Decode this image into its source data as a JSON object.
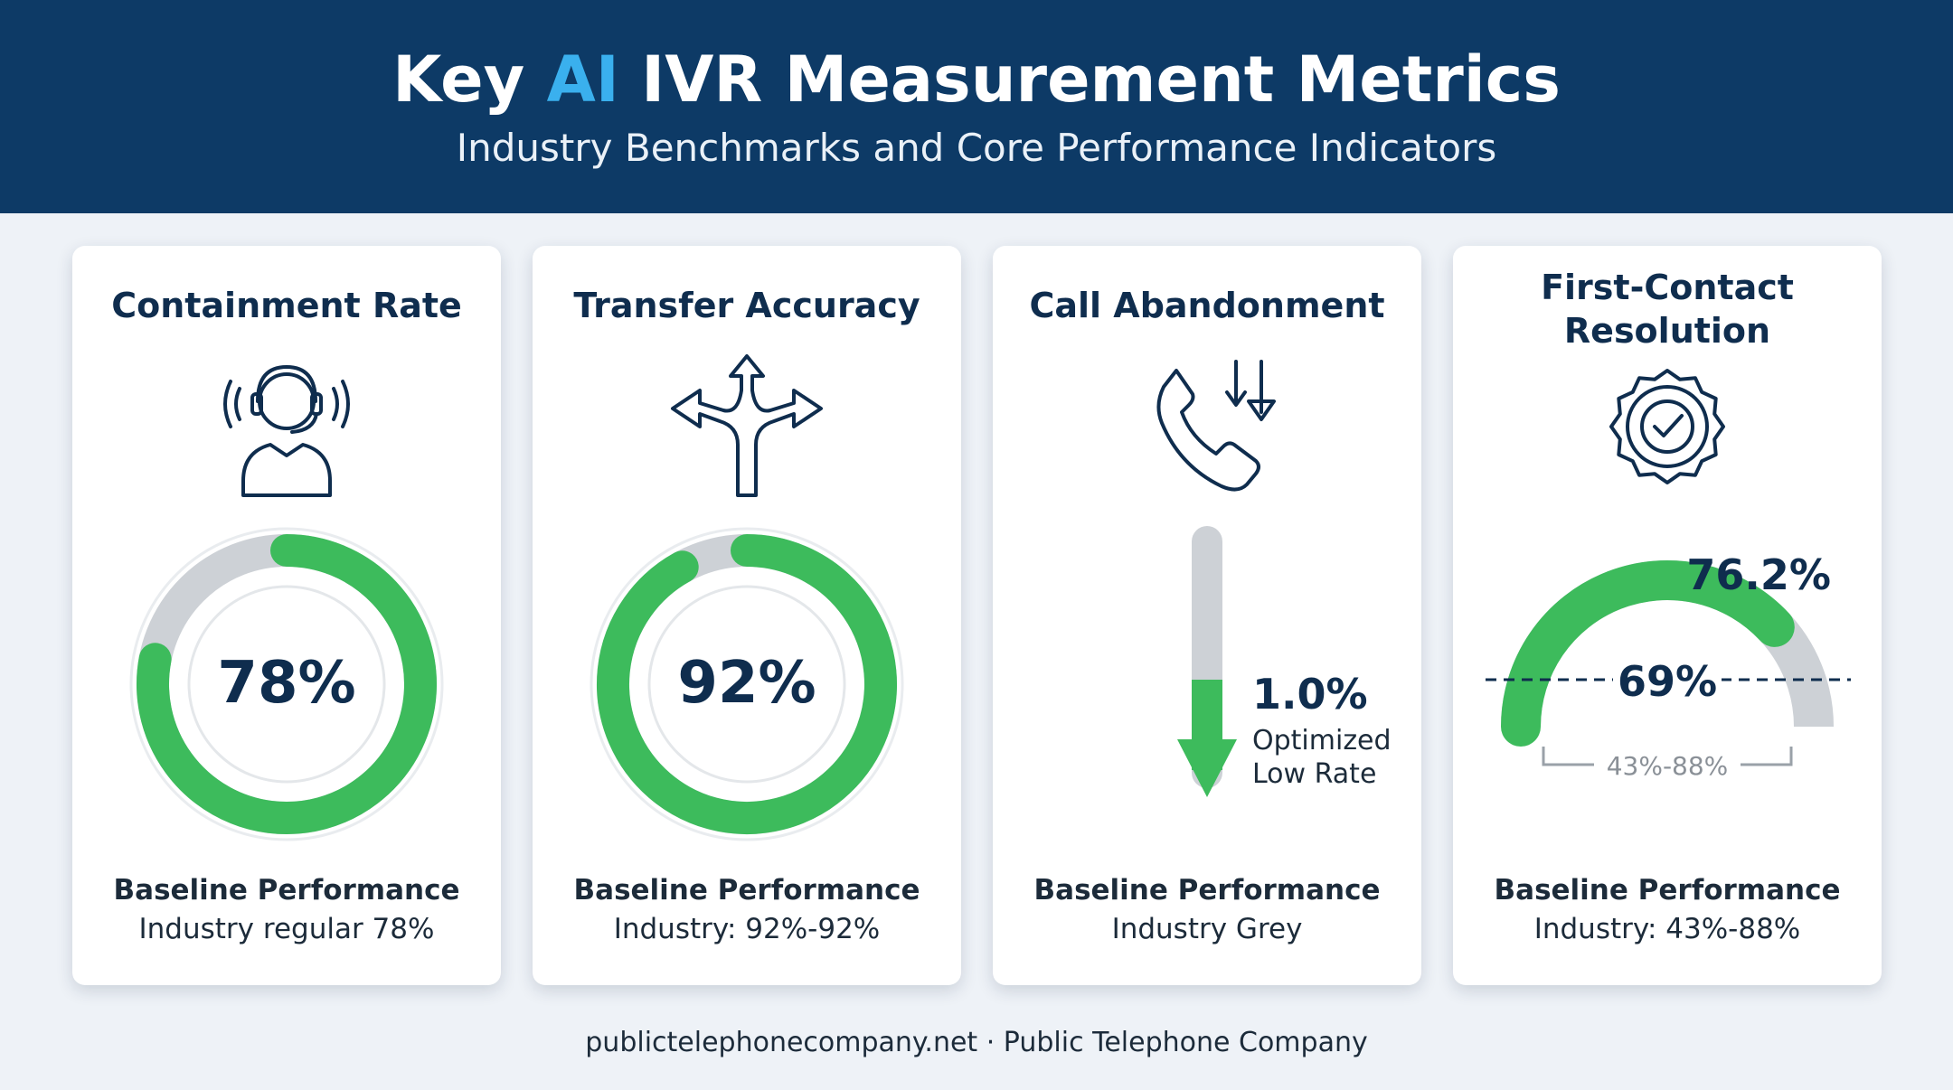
{
  "header": {
    "title_part1": "Key ",
    "title_highlight": "AI",
    "title_part2": " IVR Measurement Metrics",
    "subtitle": "Industry Benchmarks and Core Performance Indicators"
  },
  "colors": {
    "header_bg": "#0d3a66",
    "highlight": "#3ab0ee",
    "green": "#3dbb5c",
    "grey": "#cdd1d6",
    "text_dark": "#0f2d4e"
  },
  "cards": [
    {
      "title": "Containment Rate",
      "icon": "headset-agent-icon",
      "value_label": "78%",
      "value": 78,
      "baseline_label": "Baseline Performance",
      "baseline_value": "Industry regular 78%"
    },
    {
      "title": "Transfer Accuracy",
      "icon": "split-arrows-icon",
      "value_label": "92%",
      "value": 92,
      "baseline_label": "Baseline Performance",
      "baseline_value": "Industry: 92%-92%"
    },
    {
      "title": "Call Abandonment",
      "icon": "phone-down-arrow-icon",
      "value_label": "1.0%",
      "value": 1.0,
      "note_line1": "Optimized",
      "note_line2": "Low Rate",
      "baseline_label": "Baseline Performance",
      "baseline_value": "Industry Grey"
    },
    {
      "title_line1": "First-Contact",
      "title_line2": "Resolution",
      "icon": "verified-badge-icon",
      "value_label": "76.2%",
      "value": 76.2,
      "benchmark_label": "69%",
      "range_label": "43%-88%",
      "baseline_label": "Baseline Performance",
      "baseline_value": "Industry: 43%-88%"
    }
  ],
  "footer": {
    "text": "publictelephonecompany.net · Public Telephone Company"
  }
}
